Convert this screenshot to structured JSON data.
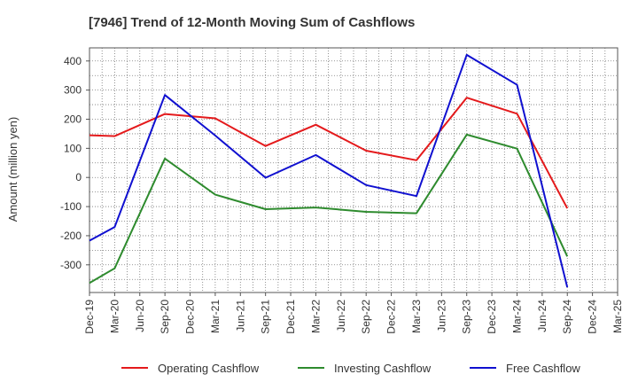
{
  "chart_data": {
    "type": "line",
    "title": "[7946]  Trend of 12-Month Moving Sum of Cashflows",
    "xlabel": "",
    "ylabel": "Amount (million yen)",
    "categories": [
      "Dec-19",
      "Mar-20",
      "Jun-20",
      "Sep-20",
      "Dec-20",
      "Mar-21",
      "Jun-21",
      "Sep-21",
      "Dec-21",
      "Mar-22",
      "Jun-22",
      "Sep-22",
      "Dec-22",
      "Mar-23",
      "Jun-23",
      "Sep-23",
      "Dec-23",
      "Mar-24",
      "Jun-24",
      "Sep-24",
      "Dec-24",
      "Mar-25"
    ],
    "yticks": [
      400,
      300,
      200,
      100,
      0,
      -100,
      -200,
      -300
    ],
    "ylim": [
      -395,
      445
    ],
    "grid": true,
    "legend_position": "bottom",
    "series": [
      {
        "name": "Operating Cashflow",
        "color": "#e41a1c",
        "x": [
          "Dec-19",
          "Mar-20",
          "Sep-20",
          "Mar-21",
          "Sep-21",
          "Mar-22",
          "Sep-22",
          "Mar-23",
          "Sep-23",
          "Mar-24",
          "Sep-24"
        ],
        "values": [
          145,
          142,
          218,
          203,
          108,
          181,
          92,
          59,
          274,
          219,
          -106
        ]
      },
      {
        "name": "Investing Cashflow",
        "color": "#2e8b2e",
        "x": [
          "Dec-19",
          "Mar-20",
          "Sep-20",
          "Mar-21",
          "Sep-21",
          "Mar-22",
          "Sep-22",
          "Mar-23",
          "Sep-23",
          "Mar-24",
          "Sep-24"
        ],
        "values": [
          -362,
          -312,
          65,
          -59,
          -109,
          -103,
          -118,
          -123,
          147,
          99,
          -271
        ]
      },
      {
        "name": "Free Cashflow",
        "color": "#1010d0",
        "x": [
          "Dec-19",
          "Mar-20",
          "Sep-20",
          "Mar-21",
          "Sep-21",
          "Mar-22",
          "Sep-22",
          "Mar-23",
          "Sep-23",
          "Mar-24",
          "Sep-24"
        ],
        "values": [
          -217,
          -170,
          283,
          144,
          -1,
          77,
          -26,
          -64,
          421,
          318,
          -377
        ]
      }
    ]
  }
}
